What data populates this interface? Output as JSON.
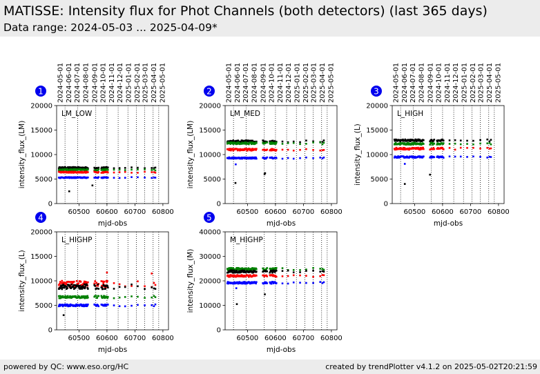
{
  "header": {
    "title": "MATISSE: Intensity flux for Phot Channels (both detectors) (last 365 days)",
    "subtitle": "Data range: 2024-05-03 ... 2025-04-09*"
  },
  "footer": {
    "left": "powered by QC: www.eso.org/HC",
    "right": "created by trendPlotter v4.1.2 on 2025-05-02T20:21:59"
  },
  "top_date_ticks": [
    "2024-05-01",
    "2024-06-01",
    "2024-07-01",
    "2024-08-01",
    "2024-09-01",
    "2024-10-01",
    "2024-11-01",
    "2024-12-01",
    "2025-01-01",
    "2025-02-01",
    "2025-03-01",
    "2025-04-01",
    "2025-05-01"
  ],
  "top_date_mjd": [
    60431,
    60462,
    60492,
    60523,
    60554,
    60584,
    60615,
    60645,
    60676,
    60707,
    60735,
    60766,
    60796
  ],
  "vertical_marker_mjd": [
    60450,
    60495,
    60560,
    60600,
    60640,
    60675,
    60705,
    60735,
    60765,
    60785
  ],
  "colors": {
    "black": "#000000",
    "red": "#ff0000",
    "green": "#008000",
    "blue": "#0000ff",
    "badge": "#0000ee"
  },
  "chart_data": [
    {
      "type": "scatter",
      "badge": "1",
      "label": "LM_LOW",
      "xlabel": "mjd-obs",
      "ylabel": "intensity_flux_(LM)",
      "xlim": [
        60420,
        60820
      ],
      "ylim": [
        0,
        20000
      ],
      "xticks": [
        60500,
        60600,
        60700,
        60800
      ],
      "yticks": [
        0,
        5000,
        10000,
        15000,
        20000
      ],
      "series": [
        {
          "color": "black",
          "level": 7300,
          "jitter": 150,
          "outliers": [
            [
              60465,
              2500
            ],
            [
              60548,
              3700
            ]
          ]
        },
        {
          "color": "green",
          "level": 6900,
          "jitter": 150,
          "outliers": []
        },
        {
          "color": "red",
          "level": 6400,
          "jitter": 120,
          "outliers": []
        },
        {
          "color": "blue",
          "level": 5300,
          "jitter": 100,
          "outliers": []
        }
      ]
    },
    {
      "type": "scatter",
      "badge": "2",
      "label": "LM_MED",
      "xlabel": "mjd-obs",
      "ylabel": "intensity_flux_(LM)",
      "xlim": [
        60420,
        60820
      ],
      "ylim": [
        0,
        20000
      ],
      "xticks": [
        60500,
        60600,
        60700,
        60800
      ],
      "yticks": [
        0,
        5000,
        10000,
        15000,
        20000
      ],
      "series": [
        {
          "color": "black",
          "level": 12700,
          "jitter": 200,
          "outliers": [
            [
              60457,
              4200
            ],
            [
              60563,
              6200
            ],
            [
              60561,
              6000
            ]
          ]
        },
        {
          "color": "green",
          "level": 12300,
          "jitter": 200,
          "outliers": []
        },
        {
          "color": "red",
          "level": 11000,
          "jitter": 200,
          "outliers": []
        },
        {
          "color": "blue",
          "level": 9300,
          "jitter": 150,
          "outliers": [
            [
              60458,
              8000
            ]
          ]
        }
      ]
    },
    {
      "type": "scatter",
      "badge": "3",
      "label": "L_HIGH",
      "xlabel": "mjd-obs",
      "ylabel": "intensity_flux_(L)",
      "xlim": [
        60420,
        60820
      ],
      "ylim": [
        0,
        20000
      ],
      "xticks": [
        60500,
        60600,
        60700,
        60800
      ],
      "yticks": [
        0,
        5000,
        10000,
        15000,
        20000
      ],
      "series": [
        {
          "color": "black",
          "level": 12900,
          "jitter": 200,
          "outliers": [
            [
              60465,
              4000
            ],
            [
              60555,
              5900
            ]
          ]
        },
        {
          "color": "green",
          "level": 12200,
          "jitter": 200,
          "outliers": []
        },
        {
          "color": "red",
          "level": 11200,
          "jitter": 200,
          "outliers": []
        },
        {
          "color": "blue",
          "level": 9500,
          "jitter": 150,
          "outliers": [
            [
              60465,
              8100
            ]
          ]
        }
      ]
    },
    {
      "type": "scatter",
      "badge": "4",
      "label": "L_HIGHP",
      "xlabel": "mjd-obs",
      "ylabel": "intensity_flux_(L)",
      "xlim": [
        60420,
        60820
      ],
      "ylim": [
        0,
        20000
      ],
      "xticks": [
        60500,
        60600,
        60700,
        60800
      ],
      "yticks": [
        0,
        5000,
        10000,
        15000,
        20000
      ],
      "series": [
        {
          "color": "red",
          "level": 9300,
          "jitter": 700,
          "outliers": [
            [
              60600,
              11700
            ],
            [
              60760,
              11500
            ]
          ]
        },
        {
          "color": "black",
          "level": 8800,
          "jitter": 500,
          "outliers": [
            [
              60445,
              3000
            ]
          ]
        },
        {
          "color": "green",
          "level": 6700,
          "jitter": 250,
          "outliers": []
        },
        {
          "color": "blue",
          "level": 5000,
          "jitter": 200,
          "outliers": []
        }
      ]
    },
    {
      "type": "scatter",
      "badge": "5",
      "label": "M_HIGHP",
      "xlabel": "mjd-obs",
      "ylabel": "intensity_flux_(M)",
      "xlim": [
        60420,
        60820
      ],
      "ylim": [
        0,
        40000
      ],
      "xticks": [
        60500,
        60600,
        60700,
        60800
      ],
      "yticks": [
        0,
        10000,
        20000,
        30000,
        40000
      ],
      "series": [
        {
          "color": "green",
          "level": 24800,
          "jitter": 500,
          "outliers": []
        },
        {
          "color": "black",
          "level": 23800,
          "jitter": 500,
          "outliers": [
            [
              60462,
              10500
            ],
            [
              60562,
              14500
            ]
          ]
        },
        {
          "color": "red",
          "level": 22000,
          "jitter": 400,
          "outliers": []
        },
        {
          "color": "blue",
          "level": 19200,
          "jitter": 400,
          "outliers": [
            [
              60460,
              17000
            ]
          ]
        }
      ]
    }
  ]
}
